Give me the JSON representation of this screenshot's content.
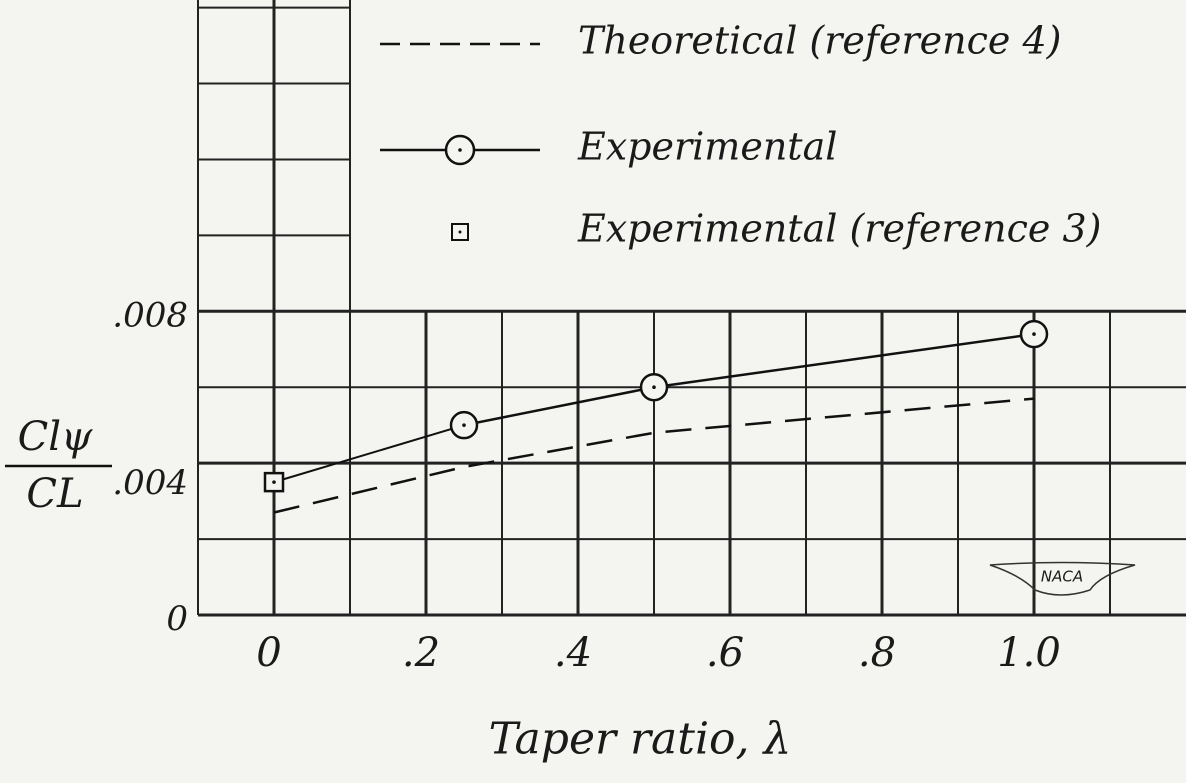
{
  "chart_data": {
    "type": "line",
    "xlabel": "Taper ratio, λ",
    "ylabel": {
      "numerator": "Clψ",
      "denominator": "CL"
    },
    "xlim": [
      -0.1,
      1.2
    ],
    "ylim": [
      0,
      0.0162
    ],
    "xticks": [
      {
        "value": 0,
        "label": "0"
      },
      {
        "value": 0.2,
        "label": ".2"
      },
      {
        "value": 0.4,
        "label": ".4"
      },
      {
        "value": 0.6,
        "label": ".6"
      },
      {
        "value": 0.8,
        "label": ".8"
      },
      {
        "value": 1.0,
        "label": "1.0"
      }
    ],
    "yticks": [
      {
        "value": 0,
        "label": "0"
      },
      {
        "value": 0.004,
        "label": ".004"
      },
      {
        "value": 0.008,
        "label": ".008"
      }
    ],
    "x_minor_grid": [
      -0.1,
      0.1,
      0.3,
      0.5,
      0.7,
      0.9,
      1.1
    ],
    "y_minor_grid": [
      0.002,
      0.006,
      0.01,
      0.012,
      0.014,
      0.016
    ],
    "grid": true,
    "series": [
      {
        "name": "Theoretical (reference 4)",
        "color": "#111111",
        "style": "dashed",
        "marker": "none",
        "x": [
          0,
          0.25,
          0.5,
          1.0
        ],
        "values": [
          0.0027,
          0.0039,
          0.0048,
          0.0057
        ]
      },
      {
        "name": "Experimental",
        "color": "#111111",
        "style": "solid",
        "marker": "circle",
        "x": [
          0.25,
          0.5,
          1.0
        ],
        "values": [
          0.005,
          0.006,
          0.0074
        ]
      },
      {
        "name": "Experimental (reference 3)",
        "color": "#111111",
        "style": "none",
        "marker": "square",
        "x": [
          0
        ],
        "values": [
          0.0035
        ]
      }
    ],
    "logo": "NACA"
  }
}
